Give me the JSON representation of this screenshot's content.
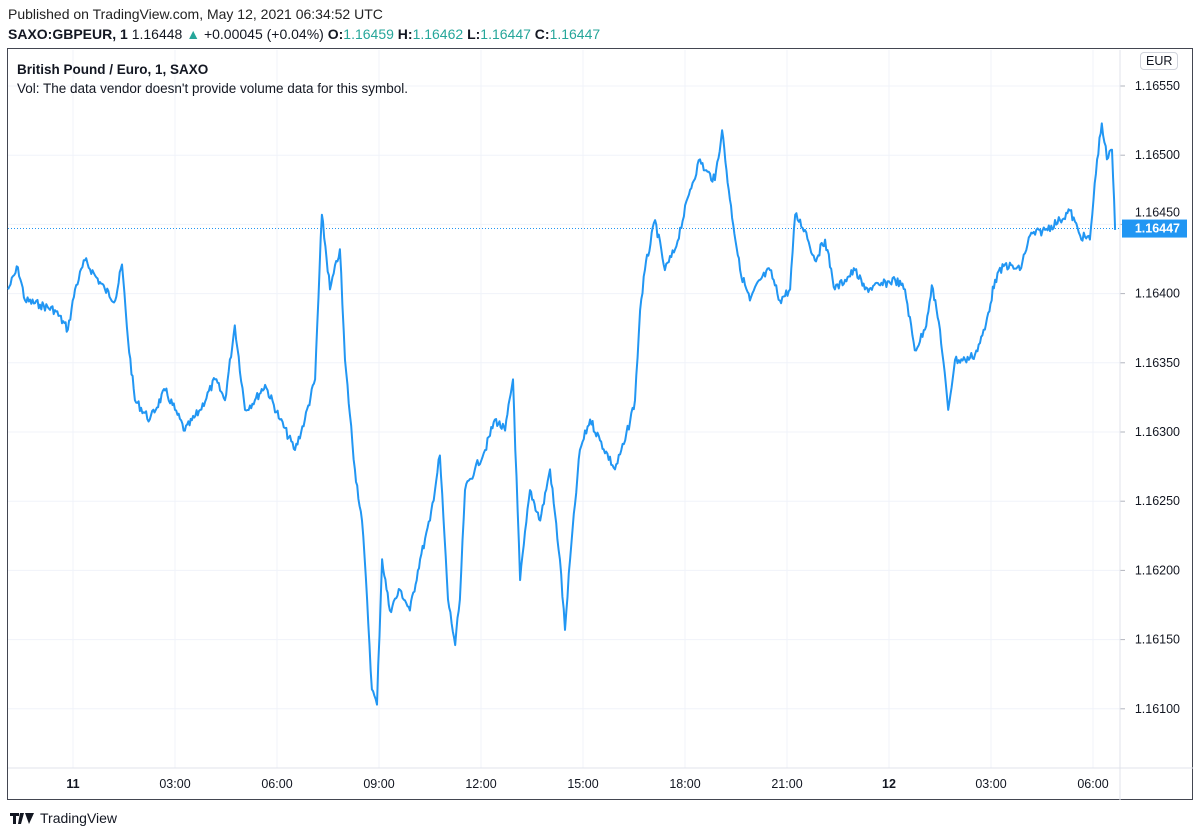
{
  "header": {
    "published": "Published on TradingView.com, May 12, 2021 06:34:52 UTC",
    "symbol": "SAXO:GBPEUR, 1",
    "last": "1.16448",
    "change": "+0.00045 (+0.04%)",
    "o_label": "O:",
    "o": "1.16459",
    "h_label": "H:",
    "h": "1.16462",
    "l_label": "L:",
    "l": "1.16447",
    "c_label": "C:",
    "c": "1.16447"
  },
  "legend": {
    "title": "British Pound / Euro, 1, SAXO",
    "vol": "Vol: The data vendor doesn't provide volume data for this symbol."
  },
  "currency": "EUR",
  "footer": {
    "brand": "TradingView"
  },
  "colors": {
    "line": "#2196f3",
    "up": "#26a69a"
  },
  "chart_data": {
    "type": "line",
    "title": "British Pound / Euro, 1, SAXO",
    "xlabel": "",
    "ylabel": "EUR",
    "x_unit": "hours since May 11 00:00 UTC",
    "ylim": [
      1.1606,
      1.16575
    ],
    "xlim": [
      -1.9,
      31.5
    ],
    "grid": true,
    "yticks": [
      "1.16550",
      "1.16500",
      "1.16450",
      "1.16400",
      "1.16350",
      "1.16300",
      "1.16250",
      "1.16200",
      "1.16150",
      "1.16100"
    ],
    "ytick_values": [
      1.1655,
      1.165,
      1.1645,
      1.164,
      1.1635,
      1.163,
      1.1625,
      1.162,
      1.1615,
      1.161
    ],
    "xticks": [
      {
        "t": 0,
        "label": "11",
        "bold": true
      },
      {
        "t": 3,
        "label": "03:00"
      },
      {
        "t": 6,
        "label": "06:00"
      },
      {
        "t": 9,
        "label": "09:00"
      },
      {
        "t": 12,
        "label": "12:00"
      },
      {
        "t": 15,
        "label": "15:00"
      },
      {
        "t": 18,
        "label": "18:00"
      },
      {
        "t": 21,
        "label": "21:00"
      },
      {
        "t": 24,
        "label": "12",
        "bold": true
      },
      {
        "t": 27,
        "label": "03:00"
      },
      {
        "t": 30,
        "label": "06:00"
      }
    ],
    "last_price": {
      "value": 1.16447,
      "label": "1.16447"
    },
    "series": [
      {
        "name": "GBPEUR",
        "points": [
          [
            -1.91,
            1.16403
          ],
          [
            -1.62,
            1.16419
          ],
          [
            -1.41,
            1.16395
          ],
          [
            -0.97,
            1.16392
          ],
          [
            -0.53,
            1.16388
          ],
          [
            -0.15,
            1.16374
          ],
          [
            0.06,
            1.16403
          ],
          [
            0.35,
            1.16424
          ],
          [
            0.65,
            1.16413
          ],
          [
            0.94,
            1.16403
          ],
          [
            1.24,
            1.16395
          ],
          [
            1.44,
            1.16421
          ],
          [
            1.62,
            1.16366
          ],
          [
            1.82,
            1.16323
          ],
          [
            2.26,
            1.16309
          ],
          [
            2.71,
            1.1633
          ],
          [
            3.0,
            1.16316
          ],
          [
            3.29,
            1.16301
          ],
          [
            3.74,
            1.16316
          ],
          [
            4.18,
            1.16338
          ],
          [
            4.47,
            1.16323
          ],
          [
            4.76,
            1.16377
          ],
          [
            5.06,
            1.16316
          ],
          [
            5.35,
            1.16323
          ],
          [
            5.65,
            1.16334
          ],
          [
            6.09,
            1.16309
          ],
          [
            6.53,
            1.16287
          ],
          [
            6.82,
            1.16309
          ],
          [
            7.12,
            1.16338
          ],
          [
            7.32,
            1.16457
          ],
          [
            7.56,
            1.16403
          ],
          [
            7.85,
            1.16432
          ],
          [
            8.0,
            1.16352
          ],
          [
            8.29,
            1.16273
          ],
          [
            8.5,
            1.16236
          ],
          [
            8.65,
            1.16179
          ],
          [
            8.79,
            1.16114
          ],
          [
            8.94,
            1.16103
          ],
          [
            9.09,
            1.16208
          ],
          [
            9.32,
            1.16171
          ],
          [
            9.62,
            1.16186
          ],
          [
            9.91,
            1.16171
          ],
          [
            10.21,
            1.16208
          ],
          [
            10.5,
            1.16236
          ],
          [
            10.79,
            1.16283
          ],
          [
            11.03,
            1.16179
          ],
          [
            11.24,
            1.16146
          ],
          [
            11.38,
            1.16179
          ],
          [
            11.53,
            1.16258
          ],
          [
            11.82,
            1.16273
          ],
          [
            12.12,
            1.16287
          ],
          [
            12.41,
            1.16309
          ],
          [
            12.71,
            1.16301
          ],
          [
            12.94,
            1.16338
          ],
          [
            13.15,
            1.16193
          ],
          [
            13.44,
            1.16258
          ],
          [
            13.74,
            1.16236
          ],
          [
            14.03,
            1.16273
          ],
          [
            14.32,
            1.16208
          ],
          [
            14.47,
            1.16157
          ],
          [
            14.62,
            1.16208
          ],
          [
            14.91,
            1.16287
          ],
          [
            15.21,
            1.16309
          ],
          [
            15.5,
            1.16294
          ],
          [
            15.94,
            1.16273
          ],
          [
            16.24,
            1.16294
          ],
          [
            16.53,
            1.16323
          ],
          [
            16.68,
            1.16388
          ],
          [
            16.82,
            1.16417
          ],
          [
            17.12,
            1.16453
          ],
          [
            17.41,
            1.16417
          ],
          [
            17.71,
            1.16432
          ],
          [
            18.15,
            1.16475
          ],
          [
            18.44,
            1.16497
          ],
          [
            18.59,
            1.16489
          ],
          [
            18.88,
            1.16482
          ],
          [
            19.09,
            1.16518
          ],
          [
            19.32,
            1.16468
          ],
          [
            19.62,
            1.16417
          ],
          [
            19.91,
            1.16395
          ],
          [
            20.21,
            1.1641
          ],
          [
            20.5,
            1.16417
          ],
          [
            20.79,
            1.16395
          ],
          [
            21.09,
            1.16403
          ],
          [
            21.24,
            1.16457
          ],
          [
            21.53,
            1.16446
          ],
          [
            21.82,
            1.16424
          ],
          [
            22.12,
            1.16439
          ],
          [
            22.41,
            1.16403
          ],
          [
            22.71,
            1.1641
          ],
          [
            23.0,
            1.16417
          ],
          [
            23.29,
            1.16403
          ],
          [
            23.74,
            1.16406
          ],
          [
            24.18,
            1.1641
          ],
          [
            24.47,
            1.16403
          ],
          [
            24.76,
            1.16359
          ],
          [
            25.06,
            1.16374
          ],
          [
            25.26,
            1.16406
          ],
          [
            25.5,
            1.16374
          ],
          [
            25.74,
            1.16316
          ],
          [
            25.94,
            1.16352
          ],
          [
            26.24,
            1.16352
          ],
          [
            26.53,
            1.16356
          ],
          [
            26.82,
            1.16374
          ],
          [
            27.12,
            1.1641
          ],
          [
            27.41,
            1.16421
          ],
          [
            27.85,
            1.16417
          ],
          [
            28.15,
            1.16442
          ],
          [
            28.59,
            1.16446
          ],
          [
            29.03,
            1.16453
          ],
          [
            29.32,
            1.1646
          ],
          [
            29.62,
            1.16442
          ],
          [
            29.91,
            1.16439
          ],
          [
            30.12,
            1.16497
          ],
          [
            30.26,
            1.16523
          ],
          [
            30.41,
            1.16497
          ],
          [
            30.56,
            1.16504
          ],
          [
            30.65,
            1.16446
          ]
        ]
      }
    ]
  }
}
